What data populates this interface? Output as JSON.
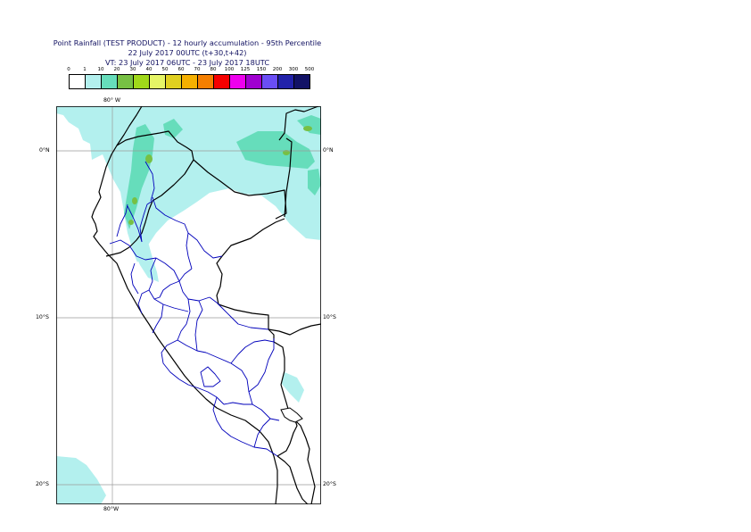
{
  "title": {
    "line1": "Point Rainfall (TEST PRODUCT) - 12 hourly accumulation - 95th Percentile",
    "line2": "22 July 2017 00UTC (t+30,t+42)",
    "line3": "VT: 23 July 2017 06UTC - 23 July 2017 18UTC"
  },
  "legend": {
    "thresholds": [
      "0",
      "1",
      "10",
      "20",
      "30",
      "40",
      "50",
      "60",
      "70",
      "80",
      "100",
      "125",
      "150",
      "200",
      "300",
      "500"
    ],
    "colors": [
      "#ffffff",
      "#b3f0ee",
      "#66ddbb",
      "#77c044",
      "#a0d81a",
      "#e6f566",
      "#e0d020",
      "#f5b000",
      "#f57f00",
      "#f50000",
      "#ee00ee",
      "#a000d0",
      "#6a4ef5",
      "#2222aa",
      "#121266"
    ]
  },
  "axes": {
    "lon_top": "80° W",
    "lon_bottom": "80°W",
    "lat_0_left": "0°N",
    "lat_0_right": "0°N",
    "lat_10_left": "10°S",
    "lat_10_right": "10°S",
    "lat_20_left": "20°S",
    "lat_20_right": "20°S"
  }
}
